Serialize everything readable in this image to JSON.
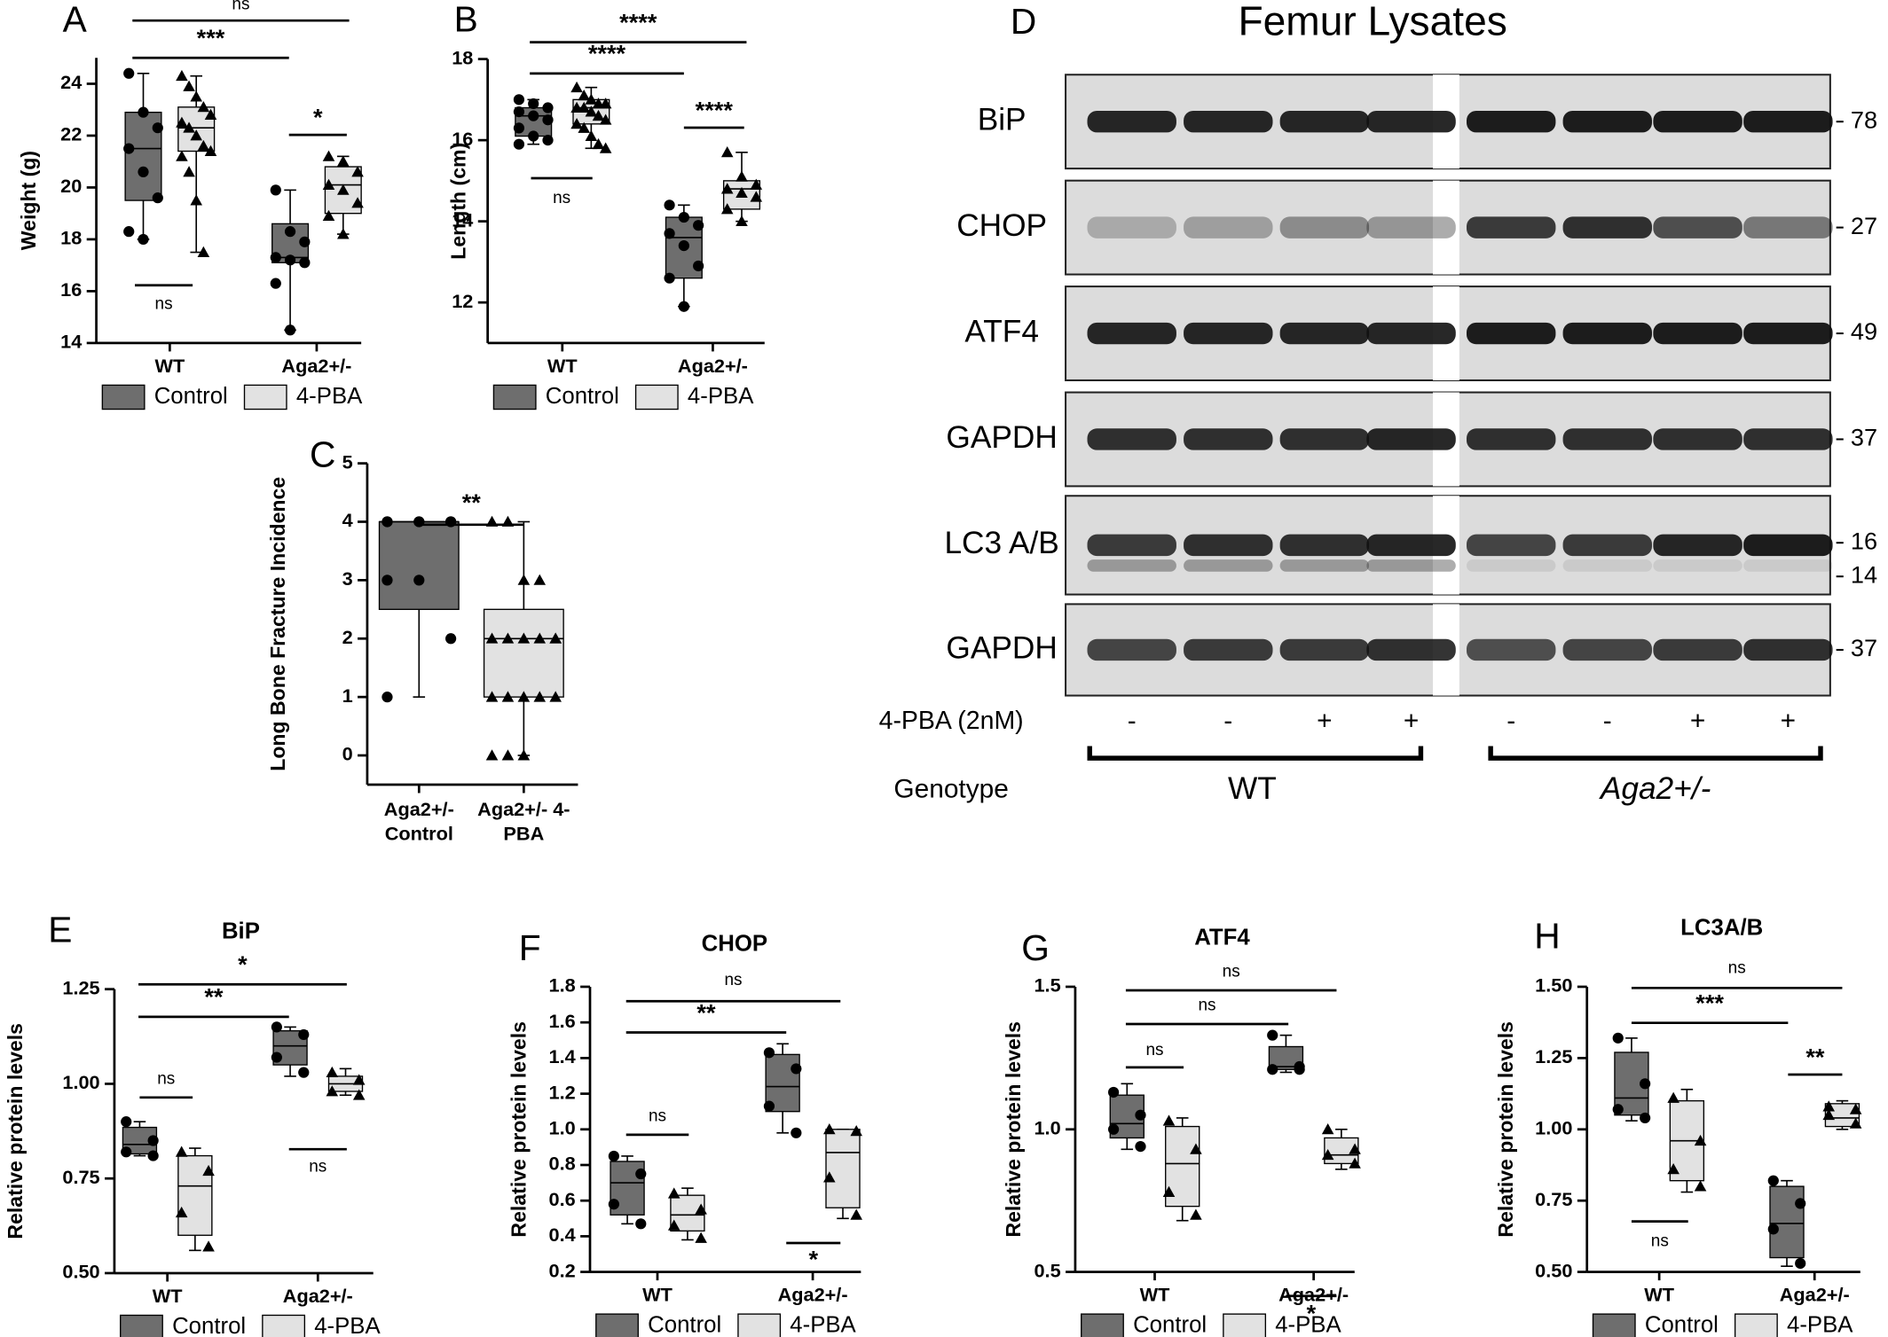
{
  "chart_data": [
    {
      "type": "box",
      "panel": "A",
      "y_label": "Weight (g)",
      "categories": [
        "WT",
        "Aga2+/-"
      ],
      "ylim": [
        14,
        25
      ],
      "yticks": [
        14,
        16,
        18,
        20,
        22,
        24
      ],
      "series": [
        {
          "name": "Control",
          "color": "#6e6e6e",
          "marker": "circle",
          "boxes": [
            {
              "min": 18.0,
              "q1": 19.5,
              "median": 21.5,
              "q3": 22.9,
              "max": 24.4,
              "points": [
                24.4,
                22.9,
                22.3,
                21.5,
                20.6,
                19.6,
                18.3,
                18.0
              ]
            },
            {
              "min": 14.5,
              "q1": 17.1,
              "median": 17.3,
              "q3": 18.6,
              "max": 19.9,
              "points": [
                19.9,
                18.3,
                17.9,
                17.3,
                17.2,
                17.1,
                16.3,
                14.5
              ]
            }
          ]
        },
        {
          "name": "4-PBA",
          "color": "#e2e2e2",
          "marker": "triangle",
          "boxes": [
            {
              "min": 17.5,
              "q1": 21.4,
              "median": 22.3,
              "q3": 23.1,
              "max": 24.3,
              "points": [
                24.3,
                23.9,
                23.5,
                23.1,
                22.8,
                22.5,
                22.3,
                22.0,
                21.6,
                21.4,
                21.2,
                20.6,
                19.5,
                17.5
              ]
            },
            {
              "min": 18.2,
              "q1": 19.0,
              "median": 20.1,
              "q3": 20.8,
              "max": 21.2,
              "points": [
                21.2,
                21.0,
                20.6,
                20.1,
                19.9,
                19.4,
                18.9,
                18.2
              ]
            }
          ]
        }
      ],
      "annotations": [
        "ns",
        "***",
        "*",
        "ns"
      ]
    },
    {
      "type": "box",
      "panel": "B",
      "y_label": "Length (cm)",
      "categories": [
        "WT",
        "Aga2+/-"
      ],
      "ylim": [
        11,
        18
      ],
      "yticks": [
        12,
        14,
        16,
        18
      ],
      "series": [
        {
          "name": "Control",
          "color": "#6e6e6e",
          "marker": "circle",
          "boxes": [
            {
              "min": 15.9,
              "q1": 16.1,
              "median": 16.6,
              "q3": 16.8,
              "max": 17.0,
              "points": [
                17.0,
                16.9,
                16.8,
                16.7,
                16.6,
                16.5,
                16.3,
                16.1,
                16.0,
                15.9
              ]
            },
            {
              "min": 11.9,
              "q1": 12.6,
              "median": 13.6,
              "q3": 14.1,
              "max": 14.4,
              "points": [
                14.4,
                14.1,
                13.9,
                13.7,
                13.4,
                12.9,
                12.6,
                11.9
              ]
            }
          ]
        },
        {
          "name": "4-PBA",
          "color": "#e2e2e2",
          "marker": "triangle",
          "boxes": [
            {
              "min": 15.8,
              "q1": 16.4,
              "median": 16.8,
              "q3": 17.0,
              "max": 17.3,
              "points": [
                17.3,
                17.1,
                17.0,
                16.9,
                16.9,
                16.8,
                16.8,
                16.7,
                16.6,
                16.5,
                16.4,
                16.3,
                16.1,
                15.9,
                15.8
              ]
            },
            {
              "min": 14.0,
              "q1": 14.3,
              "median": 14.8,
              "q3": 15.0,
              "max": 15.7,
              "points": [
                15.7,
                15.1,
                14.9,
                14.8,
                14.7,
                14.6,
                14.3,
                14.0
              ]
            }
          ]
        }
      ],
      "annotations": [
        "****",
        "****",
        "****",
        "ns"
      ]
    },
    {
      "type": "box",
      "panel": "C",
      "y_label": "Long Bone Fracture Incidence",
      "categories": [
        "Aga2+/- Control",
        "Aga2+/- 4-PBA"
      ],
      "ylim": [
        -0.5,
        5
      ],
      "yticks": [
        0,
        1,
        2,
        3,
        4,
        5
      ],
      "colors": [
        "#6e6e6e",
        "#e2e2e2"
      ],
      "markers": [
        "circle",
        "triangle"
      ],
      "boxes": [
        {
          "min": 1,
          "q1": 2.5,
          "median": 4,
          "q3": 4,
          "max": 4,
          "points": [
            4,
            4,
            4,
            4,
            4,
            4,
            3,
            3,
            2,
            1
          ]
        },
        {
          "min": 0,
          "q1": 1,
          "median": 2,
          "q3": 2.5,
          "max": 4,
          "points": [
            4,
            4,
            3,
            3,
            2,
            2,
            2,
            2,
            2,
            2,
            1,
            1,
            1,
            1,
            1,
            0,
            0,
            0
          ]
        }
      ],
      "annotations": [
        "**"
      ]
    },
    {
      "type": "box",
      "panel": "E",
      "title": "BiP",
      "y_label": "Relative protein levels",
      "categories": [
        "WT",
        "Aga2+/-"
      ],
      "ylim": [
        0.5,
        1.25
      ],
      "yticks": [
        {
          "value": 0.5,
          "label": "0.50"
        },
        {
          "value": 0.75,
          "label": "0.75"
        },
        {
          "value": 1,
          "label": "1.00"
        },
        {
          "value": 1.25,
          "label": "1.25"
        }
      ],
      "series": [
        {
          "name": "Control",
          "color": "#6e6e6e",
          "marker": "circle",
          "boxes": [
            {
              "min": 0.81,
              "q1": 0.815,
              "median": 0.84,
              "q3": 0.885,
              "max": 0.9,
              "points": [
                0.9,
                0.85,
                0.82,
                0.81
              ]
            },
            {
              "min": 1.02,
              "q1": 1.05,
              "median": 1.1,
              "q3": 1.14,
              "max": 1.15,
              "points": [
                1.15,
                1.13,
                1.07,
                1.03
              ]
            }
          ]
        },
        {
          "name": "4-PBA",
          "color": "#e2e2e2",
          "marker": "triangle",
          "boxes": [
            {
              "min": 0.56,
              "q1": 0.6,
              "median": 0.73,
              "q3": 0.81,
              "max": 0.83,
              "points": [
                0.82,
                0.77,
                0.66,
                0.57
              ]
            },
            {
              "min": 0.97,
              "q1": 0.98,
              "median": 1.0,
              "q3": 1.02,
              "max": 1.04,
              "points": [
                1.03,
                1.01,
                0.98,
                0.97
              ]
            }
          ]
        }
      ],
      "annotations": [
        "*",
        "**",
        "ns",
        "ns"
      ]
    },
    {
      "type": "box",
      "panel": "F",
      "title": "CHOP",
      "y_label": "Relative protein levels",
      "categories": [
        "WT",
        "Aga2+/-"
      ],
      "ylim": [
        0.2,
        1.8
      ],
      "yticks": [
        {
          "value": 0.2,
          "label": "0.2"
        },
        {
          "value": 0.4,
          "label": "0.4"
        },
        {
          "value": 0.6,
          "label": "0.6"
        },
        {
          "value": 0.8,
          "label": "0.8"
        },
        {
          "value": 1,
          "label": "1.0"
        },
        {
          "value": 1.2,
          "label": "1.2"
        },
        {
          "value": 1.4,
          "label": "1.4"
        },
        {
          "value": 1.6,
          "label": "1.6"
        },
        {
          "value": 1.8,
          "label": "1.8"
        }
      ],
      "series": [
        {
          "name": "Control",
          "color": "#6e6e6e",
          "marker": "circle",
          "boxes": [
            {
              "min": 0.47,
              "q1": 0.52,
              "median": 0.7,
              "q3": 0.82,
              "max": 0.85,
              "points": [
                0.85,
                0.75,
                0.58,
                0.47
              ]
            },
            {
              "min": 0.98,
              "q1": 1.1,
              "median": 1.24,
              "q3": 1.42,
              "max": 1.48,
              "points": [
                1.43,
                1.34,
                1.13,
                0.98
              ]
            }
          ]
        },
        {
          "name": "4-PBA",
          "color": "#e2e2e2",
          "marker": "triangle",
          "boxes": [
            {
              "min": 0.38,
              "q1": 0.43,
              "median": 0.52,
              "q3": 0.63,
              "max": 0.67,
              "points": [
                0.64,
                0.55,
                0.46,
                0.39
              ]
            },
            {
              "min": 0.5,
              "q1": 0.56,
              "median": 0.87,
              "q3": 1.0,
              "max": 1.0,
              "points": [
                1.0,
                0.99,
                0.73,
                0.52
              ]
            }
          ]
        }
      ],
      "annotations": [
        "ns",
        "**",
        "ns",
        "*"
      ]
    },
    {
      "type": "box",
      "panel": "G",
      "title": "ATF4",
      "y_label": "Relative protein levels",
      "categories": [
        "WT",
        "Aga2+/-"
      ],
      "ylim": [
        0.5,
        1.5
      ],
      "yticks": [
        {
          "value": 0.5,
          "label": "0.5"
        },
        {
          "value": 1,
          "label": "1.0"
        },
        {
          "value": 1.5,
          "label": "1.5"
        }
      ],
      "series": [
        {
          "name": "Control",
          "color": "#6e6e6e",
          "marker": "circle",
          "boxes": [
            {
              "min": 0.93,
              "q1": 0.97,
              "median": 1.02,
              "q3": 1.12,
              "max": 1.16,
              "points": [
                1.13,
                1.05,
                1.0,
                0.94
              ]
            },
            {
              "min": 1.2,
              "q1": 1.21,
              "median": 1.22,
              "q3": 1.29,
              "max": 1.33,
              "points": [
                1.33,
                1.22,
                1.21,
                1.21
              ]
            }
          ]
        },
        {
          "name": "4-PBA",
          "color": "#e2e2e2",
          "marker": "triangle",
          "boxes": [
            {
              "min": 0.68,
              "q1": 0.73,
              "median": 0.88,
              "q3": 1.01,
              "max": 1.04,
              "points": [
                1.03,
                0.93,
                0.78,
                0.7
              ]
            },
            {
              "min": 0.86,
              "q1": 0.88,
              "median": 0.91,
              "q3": 0.97,
              "max": 1.0,
              "points": [
                1.0,
                0.93,
                0.91,
                0.88
              ]
            }
          ]
        }
      ],
      "annotations": [
        "ns",
        "ns",
        "ns",
        "*"
      ]
    },
    {
      "type": "box",
      "panel": "H",
      "title": "LC3A/B",
      "y_label": "Relative protein levels",
      "categories": [
        "WT",
        "Aga2+/-"
      ],
      "ylim": [
        0.5,
        1.5
      ],
      "yticks": [
        {
          "value": 0.5,
          "label": "0.50"
        },
        {
          "value": 0.75,
          "label": "0.75"
        },
        {
          "value": 1,
          "label": "1.00"
        },
        {
          "value": 1.25,
          "label": "1.25"
        },
        {
          "value": 1.5,
          "label": "1.50"
        }
      ],
      "series": [
        {
          "name": "Control",
          "color": "#6e6e6e",
          "marker": "circle",
          "boxes": [
            {
              "min": 1.03,
              "q1": 1.05,
              "median": 1.11,
              "q3": 1.27,
              "max": 1.32,
              "points": [
                1.32,
                1.16,
                1.07,
                1.04
              ]
            },
            {
              "min": 0.52,
              "q1": 0.55,
              "median": 0.67,
              "q3": 0.8,
              "max": 0.82,
              "points": [
                0.82,
                0.74,
                0.65,
                0.53
              ]
            }
          ]
        },
        {
          "name": "4-PBA",
          "color": "#e2e2e2",
          "marker": "triangle",
          "boxes": [
            {
              "min": 0.78,
              "q1": 0.82,
              "median": 0.96,
              "q3": 1.1,
              "max": 1.14,
              "points": [
                1.11,
                0.96,
                0.86,
                0.8
              ]
            },
            {
              "min": 1.0,
              "q1": 1.01,
              "median": 1.04,
              "q3": 1.09,
              "max": 1.1,
              "points": [
                1.08,
                1.07,
                1.05,
                1.02
              ]
            }
          ]
        }
      ],
      "annotations": [
        "ns",
        "***",
        "**",
        "ns"
      ]
    }
  ],
  "blot": {
    "panel": "D",
    "title": "Femur Lysates",
    "rows": [
      {
        "label": "BiP",
        "markers": [
          78
        ]
      },
      {
        "label": "CHOP",
        "markers": [
          27
        ]
      },
      {
        "label": "ATF4",
        "markers": [
          49
        ]
      },
      {
        "label": "GAPDH",
        "markers": [
          37
        ]
      },
      {
        "label": "LC3 A/B",
        "markers": [
          16,
          14
        ]
      },
      {
        "label": "GAPDH",
        "markers": [
          37
        ]
      }
    ],
    "treatment": {
      "label": "4-PBA (2nM)",
      "lanes": [
        "-",
        "-",
        "+",
        "+",
        "-",
        "-",
        "+",
        "+"
      ]
    },
    "genotype": {
      "label": "Genotype",
      "groups": [
        "WT",
        "Aga2+/-"
      ]
    }
  }
}
